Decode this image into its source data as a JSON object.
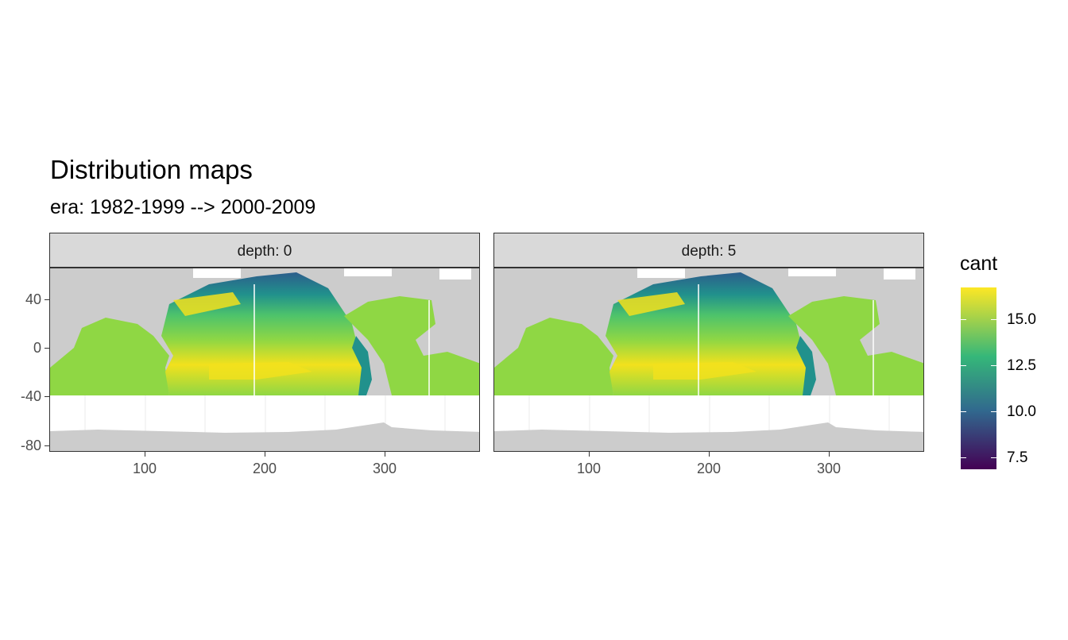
{
  "title": "Distribution maps",
  "subtitle": "era: 1982-1999 --> 2000-2009",
  "panels": [
    {
      "strip": "depth: 0"
    },
    {
      "strip": "depth: 5"
    }
  ],
  "y_ticks": [
    "40",
    "0",
    "-40",
    "-80"
  ],
  "x_ticks": [
    "100",
    "200",
    "300"
  ],
  "legend": {
    "title": "cant",
    "labels": [
      "15.0",
      "12.5",
      "10.0",
      "7.5"
    ],
    "colors": {
      "low": "#440154",
      "mid1": "#31688e",
      "mid2": "#35b779",
      "high": "#fde725"
    }
  },
  "map_colors": {
    "land": "#cccccc",
    "grid": "#ebebeb",
    "ocean_high": "#f2e11d",
    "ocean_mid": "#8fd744",
    "ocean_green": "#4ec36b",
    "ocean_teal": "#21918c",
    "ocean_deep": "#2c5e8c"
  }
}
